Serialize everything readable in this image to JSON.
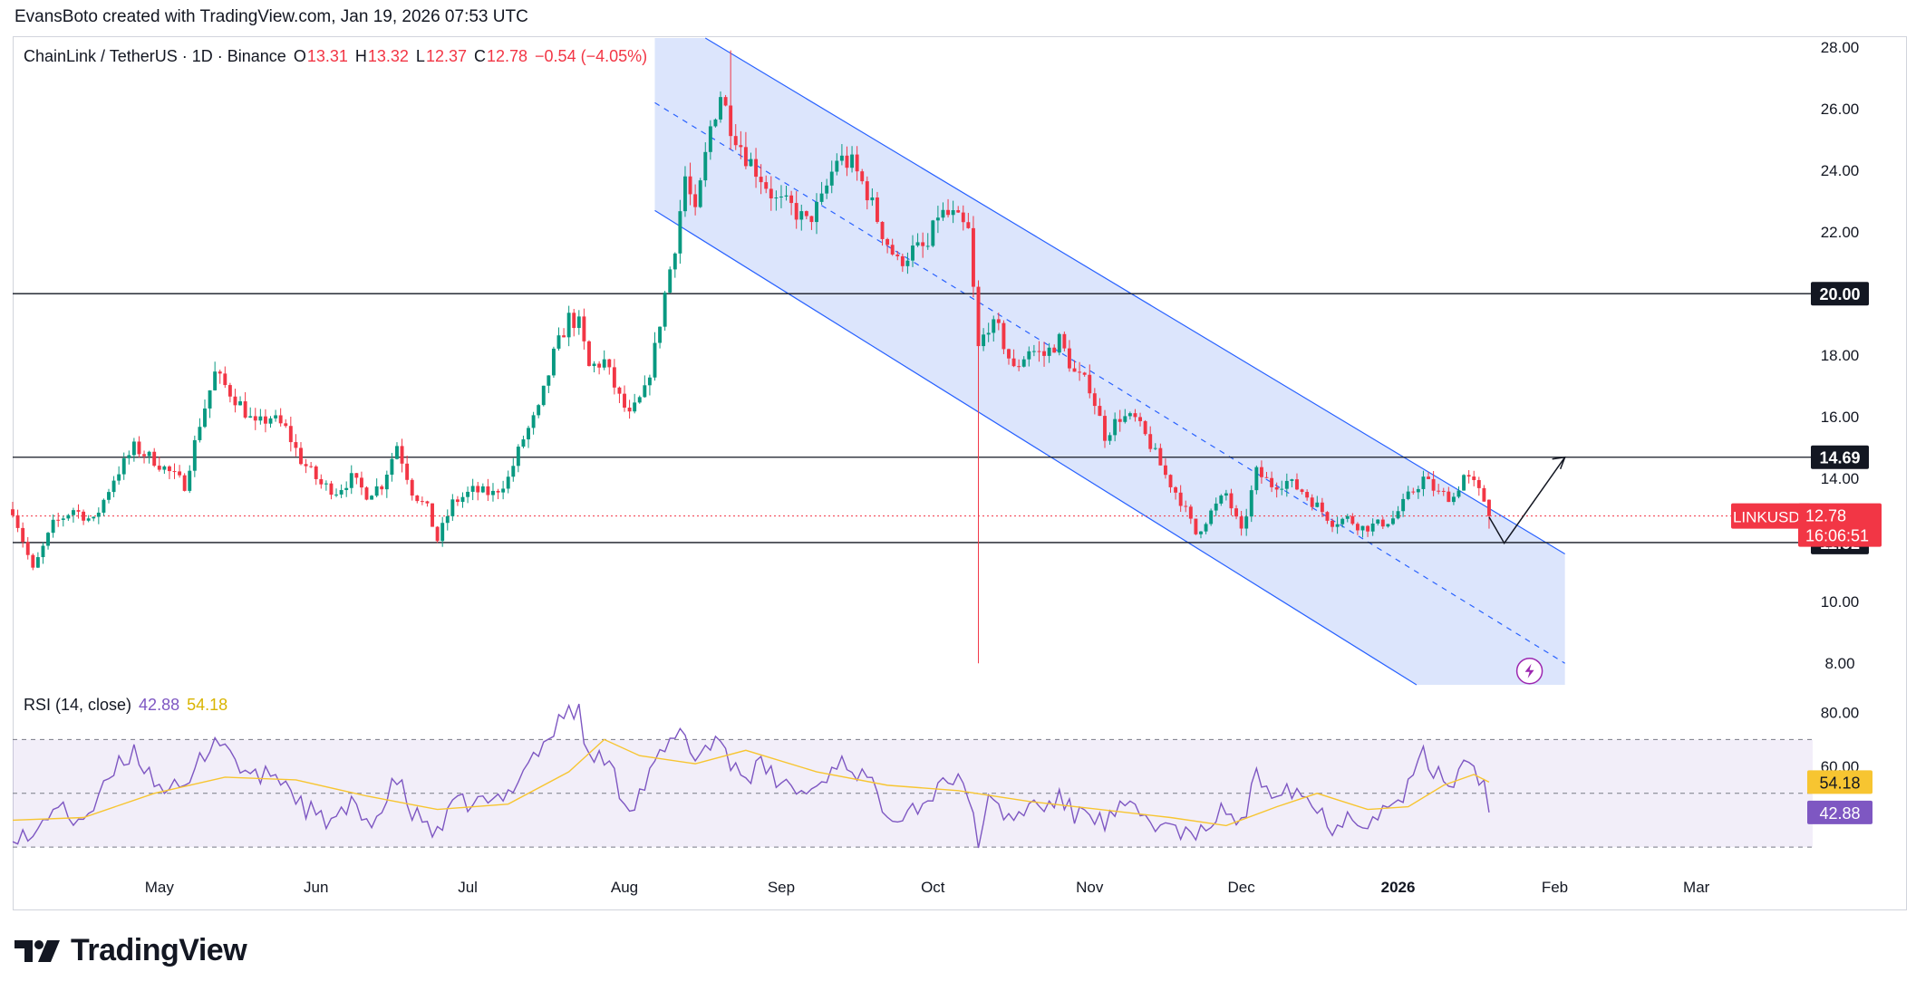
{
  "header": {
    "credit": "EvansBoto created with TradingView.com, Jan 19, 2026 07:53 UTC"
  },
  "legend": {
    "symbol": "ChainLink / TetherUS · 1D · Binance",
    "o_label": "O",
    "o_value": "13.31",
    "h_label": "H",
    "h_value": "13.32",
    "l_label": "L",
    "l_value": "12.37",
    "c_label": "C",
    "c_value": "12.78",
    "change": "−0.54 (−4.05%)"
  },
  "rsi_legend": {
    "label": "RSI (14, close)",
    "rsi_value": "42.88",
    "ma_value": "54.18"
  },
  "price_badge": {
    "ticker": "LINKUSDT",
    "price": "12.78",
    "countdown": "16:06:51"
  },
  "level_labels": [
    "20.00",
    "14.69",
    "11.92"
  ],
  "rsi_badges": {
    "ma": "54.18",
    "rsi": "42.88"
  },
  "footer": {
    "logo_text": "TradingView"
  },
  "colors": {
    "up": "#089981",
    "down": "#f23645",
    "channel_fill": "#d6e0fc",
    "channel_line": "#2962ff",
    "rsi_line": "#7e57c2",
    "rsi_ma": "#f7c531",
    "rsi_band": "#7e57c2"
  },
  "chart_data": [
    {
      "type": "candlestick",
      "title": "ChainLink / TetherUS · 1D · Binance",
      "y_ticks": [
        28,
        26,
        24,
        22,
        20,
        18,
        16,
        14,
        12,
        10,
        8
      ],
      "ylim": [
        7.3,
        28.3
      ],
      "x_ticks": [
        "May",
        "Jun",
        "Jul",
        "Aug",
        "Sep",
        "Oct",
        "Nov",
        "Dec",
        "2026",
        "Feb",
        "Mar"
      ],
      "x_tick_dates": [
        "2025-05-01",
        "2025-06-01",
        "2025-07-01",
        "2025-08-01",
        "2025-09-01",
        "2025-10-01",
        "2025-11-01",
        "2025-12-01",
        "2026-01-01",
        "2026-02-01",
        "2026-03-01"
      ],
      "date_range": [
        "2025-04-02",
        "2026-03-24"
      ],
      "close_path": [
        [
          "2025-04-02",
          13.0
        ],
        [
          "2025-04-06",
          11.0
        ],
        [
          "2025-04-10",
          12.5
        ],
        [
          "2025-04-14",
          13.0
        ],
        [
          "2025-04-18",
          12.6
        ],
        [
          "2025-04-22",
          14.0
        ],
        [
          "2025-04-26",
          15.0
        ],
        [
          "2025-04-30",
          14.6
        ],
        [
          "2025-05-03",
          14.2
        ],
        [
          "2025-05-06",
          13.8
        ],
        [
          "2025-05-09",
          15.8
        ],
        [
          "2025-05-12",
          17.4
        ],
        [
          "2025-05-14",
          17.0
        ],
        [
          "2025-05-17",
          16.4
        ],
        [
          "2025-05-20",
          15.7
        ],
        [
          "2025-05-23",
          16.0
        ],
        [
          "2025-05-26",
          15.6
        ],
        [
          "2025-05-29",
          14.6
        ],
        [
          "2025-06-02",
          13.8
        ],
        [
          "2025-06-05",
          13.6
        ],
        [
          "2025-06-08",
          14.0
        ],
        [
          "2025-06-11",
          13.5
        ],
        [
          "2025-06-14",
          13.8
        ],
        [
          "2025-06-17",
          15.1
        ],
        [
          "2025-06-20",
          13.6
        ],
        [
          "2025-06-23",
          13.0
        ],
        [
          "2025-06-25",
          12.0
        ],
        [
          "2025-06-28",
          13.2
        ],
        [
          "2025-07-02",
          13.6
        ],
        [
          "2025-07-06",
          13.5
        ],
        [
          "2025-07-09",
          14.0
        ],
        [
          "2025-07-12",
          15.3
        ],
        [
          "2025-07-15",
          16.2
        ],
        [
          "2025-07-18",
          18.0
        ],
        [
          "2025-07-21",
          19.2
        ],
        [
          "2025-07-23",
          19.0
        ],
        [
          "2025-07-25",
          17.6
        ],
        [
          "2025-07-28",
          17.8
        ],
        [
          "2025-07-31",
          16.6
        ],
        [
          "2025-08-02",
          16.0
        ],
        [
          "2025-08-05",
          16.8
        ],
        [
          "2025-08-07",
          18.2
        ],
        [
          "2025-08-09",
          20.0
        ],
        [
          "2025-08-11",
          21.6
        ],
        [
          "2025-08-13",
          23.8
        ],
        [
          "2025-08-15",
          22.5
        ],
        [
          "2025-08-18",
          25.4
        ],
        [
          "2025-08-20",
          26.5
        ],
        [
          "2025-08-22",
          25.5
        ],
        [
          "2025-08-25",
          24.5
        ],
        [
          "2025-08-28",
          23.8
        ],
        [
          "2025-08-31",
          23.0
        ],
        [
          "2025-09-03",
          22.8
        ],
        [
          "2025-09-06",
          22.3
        ],
        [
          "2025-09-09",
          23.0
        ],
        [
          "2025-09-12",
          24.4
        ],
        [
          "2025-09-15",
          24.2
        ],
        [
          "2025-09-18",
          23.3
        ],
        [
          "2025-09-21",
          22.0
        ],
        [
          "2025-09-24",
          21.0
        ],
        [
          "2025-09-27",
          21.4
        ],
        [
          "2025-09-30",
          21.5
        ],
        [
          "2025-10-02",
          22.6
        ],
        [
          "2025-10-05",
          22.5
        ],
        [
          "2025-10-08",
          22.0
        ],
        [
          "2025-10-10",
          18.2
        ],
        [
          "2025-10-12",
          19.0
        ],
        [
          "2025-10-14",
          18.8
        ],
        [
          "2025-10-17",
          17.5
        ],
        [
          "2025-10-20",
          18.2
        ],
        [
          "2025-10-23",
          18.0
        ],
        [
          "2025-10-26",
          18.5
        ],
        [
          "2025-10-29",
          17.4
        ],
        [
          "2025-11-01",
          17.0
        ],
        [
          "2025-11-04",
          15.4
        ],
        [
          "2025-11-07",
          16.0
        ],
        [
          "2025-11-10",
          15.9
        ],
        [
          "2025-11-13",
          15.1
        ],
        [
          "2025-11-16",
          14.1
        ],
        [
          "2025-11-19",
          13.3
        ],
        [
          "2025-11-22",
          12.2
        ],
        [
          "2025-11-25",
          12.9
        ],
        [
          "2025-11-28",
          13.5
        ],
        [
          "2025-12-01",
          12.2
        ],
        [
          "2025-12-04",
          14.2
        ],
        [
          "2025-12-07",
          13.8
        ],
        [
          "2025-12-10",
          13.9
        ],
        [
          "2025-12-13",
          13.6
        ],
        [
          "2025-12-16",
          13.1
        ],
        [
          "2025-12-19",
          12.6
        ],
        [
          "2025-12-22",
          12.7
        ],
        [
          "2025-12-25",
          12.4
        ],
        [
          "2025-12-28",
          12.5
        ],
        [
          "2025-12-31",
          12.7
        ],
        [
          "2026-01-03",
          13.4
        ],
        [
          "2026-01-06",
          14.0
        ],
        [
          "2026-01-09",
          13.5
        ],
        [
          "2026-01-12",
          13.4
        ],
        [
          "2026-01-14",
          14.1
        ],
        [
          "2026-01-16",
          13.8
        ],
        [
          "2026-01-18",
          13.3
        ],
        [
          "2026-01-19",
          12.78
        ]
      ],
      "extremes": {
        "high": [
          "2025-08-22",
          27.9
        ],
        "low": [
          "2025-10-10",
          8.0
        ]
      },
      "horizontal_levels": [
        20.0,
        14.69,
        11.92
      ],
      "last_price": 12.78,
      "channel": {
        "upper": [
          [
            "2025-08-17",
            28.3
          ],
          [
            "2026-02-03",
            11.55
          ]
        ],
        "mid": [
          [
            "2025-08-07",
            26.2
          ],
          [
            "2026-02-03",
            8.0
          ]
        ],
        "lower": [
          [
            "2025-08-07",
            22.7
          ],
          [
            "2026-02-03",
            4.3
          ]
        ],
        "fill_bottom": 7.3
      },
      "projection": [
        [
          "2026-01-19",
          12.75
        ],
        [
          "2026-01-22",
          11.9
        ],
        [
          "2026-02-03",
          14.69
        ]
      ]
    },
    {
      "type": "line",
      "title": "RSI (14, close)",
      "y_ticks": [
        80,
        60
      ],
      "ylim": [
        25,
        89
      ],
      "bands": [
        70,
        50,
        30
      ],
      "series": [
        {
          "name": "RSI",
          "values": [
            [
              "2025-04-02",
              36
            ],
            [
              "2025-04-06",
              32
            ],
            [
              "2025-04-10",
              46
            ],
            [
              "2025-04-14",
              40
            ],
            [
              "2025-04-18",
              44
            ],
            [
              "2025-04-22",
              58
            ],
            [
              "2025-04-26",
              66
            ],
            [
              "2025-04-30",
              55
            ],
            [
              "2025-05-03",
              52
            ],
            [
              "2025-05-06",
              50
            ],
            [
              "2025-05-09",
              62
            ],
            [
              "2025-05-12",
              71
            ],
            [
              "2025-05-14",
              68
            ],
            [
              "2025-05-17",
              60
            ],
            [
              "2025-05-20",
              55
            ],
            [
              "2025-05-23",
              58
            ],
            [
              "2025-05-26",
              54
            ],
            [
              "2025-05-29",
              46
            ],
            [
              "2025-06-02",
              40
            ],
            [
              "2025-06-05",
              40
            ],
            [
              "2025-06-08",
              45
            ],
            [
              "2025-06-11",
              40
            ],
            [
              "2025-06-14",
              43
            ],
            [
              "2025-06-17",
              56
            ],
            [
              "2025-06-20",
              42
            ],
            [
              "2025-06-23",
              39
            ],
            [
              "2025-06-25",
              34
            ],
            [
              "2025-06-28",
              45
            ],
            [
              "2025-07-02",
              47
            ],
            [
              "2025-07-06",
              46
            ],
            [
              "2025-07-09",
              50
            ],
            [
              "2025-07-12",
              60
            ],
            [
              "2025-07-15",
              66
            ],
            [
              "2025-07-18",
              73
            ],
            [
              "2025-07-21",
              82
            ],
            [
              "2025-07-23",
              80
            ],
            [
              "2025-07-25",
              62
            ],
            [
              "2025-07-28",
              64
            ],
            [
              "2025-07-31",
              52
            ],
            [
              "2025-08-02",
              45
            ],
            [
              "2025-08-05",
              53
            ],
            [
              "2025-08-07",
              60
            ],
            [
              "2025-08-09",
              66
            ],
            [
              "2025-08-11",
              70
            ],
            [
              "2025-08-13",
              72
            ],
            [
              "2025-08-15",
              63
            ],
            [
              "2025-08-18",
              69
            ],
            [
              "2025-08-20",
              70
            ],
            [
              "2025-08-22",
              62
            ],
            [
              "2025-08-25",
              56
            ],
            [
              "2025-08-28",
              60
            ],
            [
              "2025-08-31",
              55
            ],
            [
              "2025-09-03",
              52
            ],
            [
              "2025-09-06",
              50
            ],
            [
              "2025-09-09",
              54
            ],
            [
              "2025-09-12",
              62
            ],
            [
              "2025-09-15",
              60
            ],
            [
              "2025-09-18",
              55
            ],
            [
              "2025-09-21",
              46
            ],
            [
              "2025-09-24",
              42
            ],
            [
              "2025-09-27",
              46
            ],
            [
              "2025-09-30",
              45
            ],
            [
              "2025-10-02",
              56
            ],
            [
              "2025-10-05",
              55
            ],
            [
              "2025-10-08",
              50
            ],
            [
              "2025-10-10",
              33
            ],
            [
              "2025-10-12",
              46
            ],
            [
              "2025-10-14",
              44
            ],
            [
              "2025-10-17",
              40
            ],
            [
              "2025-10-20",
              46
            ],
            [
              "2025-10-23",
              45
            ],
            [
              "2025-10-26",
              48
            ],
            [
              "2025-10-29",
              42
            ],
            [
              "2025-11-01",
              44
            ],
            [
              "2025-11-04",
              38
            ],
            [
              "2025-11-07",
              44
            ],
            [
              "2025-11-10",
              43
            ],
            [
              "2025-11-13",
              40
            ],
            [
              "2025-11-16",
              37
            ],
            [
              "2025-11-19",
              36
            ],
            [
              "2025-11-22",
              32
            ],
            [
              "2025-11-25",
              40
            ],
            [
              "2025-11-28",
              44
            ],
            [
              "2025-12-01",
              38
            ],
            [
              "2025-12-04",
              56
            ],
            [
              "2025-12-07",
              52
            ],
            [
              "2025-12-10",
              53
            ],
            [
              "2025-12-13",
              50
            ],
            [
              "2025-12-16",
              44
            ],
            [
              "2025-12-19",
              38
            ],
            [
              "2025-12-22",
              42
            ],
            [
              "2025-12-25",
              40
            ],
            [
              "2025-12-28",
              42
            ],
            [
              "2025-12-31",
              45
            ],
            [
              "2026-01-03",
              52
            ],
            [
              "2026-01-06",
              64
            ],
            [
              "2026-01-09",
              56
            ],
            [
              "2026-01-12",
              55
            ],
            [
              "2026-01-14",
              63
            ],
            [
              "2026-01-16",
              60
            ],
            [
              "2026-01-18",
              54
            ],
            [
              "2026-01-19",
              42.88
            ]
          ]
        },
        {
          "name": "RSI-based MA",
          "values": [
            [
              "2025-04-02",
              40
            ],
            [
              "2025-04-16",
              41
            ],
            [
              "2025-04-30",
              50
            ],
            [
              "2025-05-14",
              56
            ],
            [
              "2025-05-28",
              55
            ],
            [
              "2025-06-11",
              49
            ],
            [
              "2025-06-25",
              44
            ],
            [
              "2025-07-09",
              46
            ],
            [
              "2025-07-21",
              58
            ],
            [
              "2025-07-28",
              70
            ],
            [
              "2025-08-04",
              64
            ],
            [
              "2025-08-15",
              61
            ],
            [
              "2025-08-25",
              66
            ],
            [
              "2025-09-08",
              58
            ],
            [
              "2025-09-22",
              53
            ],
            [
              "2025-10-06",
              51
            ],
            [
              "2025-10-20",
              47
            ],
            [
              "2025-11-03",
              44
            ],
            [
              "2025-11-17",
              41
            ],
            [
              "2025-11-28",
              38
            ],
            [
              "2025-12-08",
              45
            ],
            [
              "2025-12-16",
              50
            ],
            [
              "2025-12-26",
              44
            ],
            [
              "2026-01-03",
              45
            ],
            [
              "2026-01-10",
              53
            ],
            [
              "2026-01-16",
              57
            ],
            [
              "2026-01-19",
              54.18
            ]
          ]
        }
      ]
    }
  ]
}
